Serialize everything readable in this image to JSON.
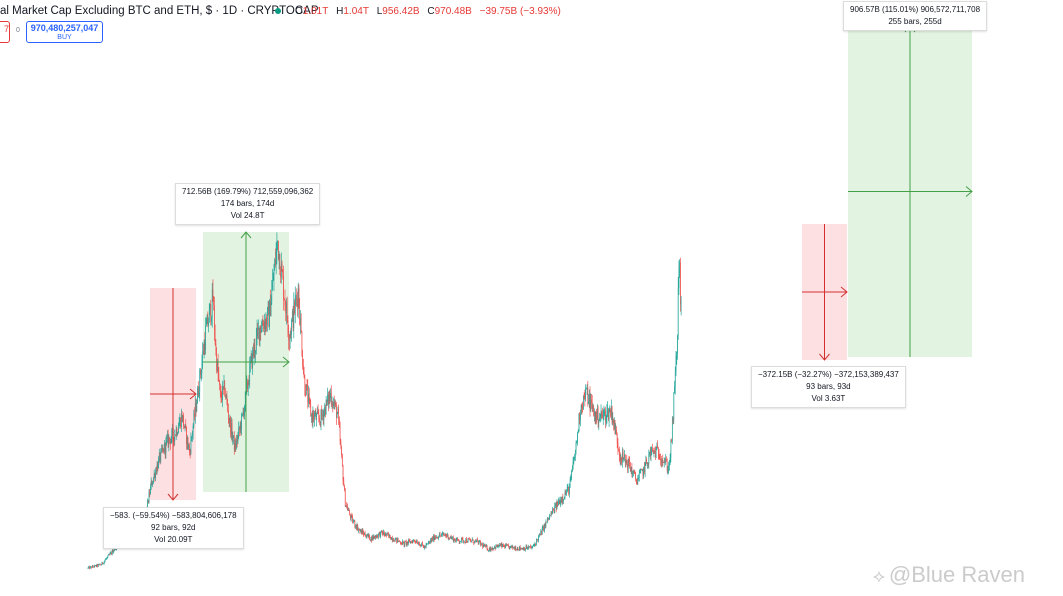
{
  "header": {
    "title": "al Market Cap Excluding BTC and ETH, $ · 1D · CRYPTOCAP",
    "ohlc": [
      {
        "k": "O",
        "v": "1.01T"
      },
      {
        "k": "H",
        "v": "1.04T"
      },
      {
        "k": "L",
        "v": "956.42B"
      },
      {
        "k": "C",
        "v": "970.48B"
      },
      {
        "k": "",
        "v": "−39.75B (−3.93%)"
      }
    ],
    "sell_price_fragment": "7",
    "spread": "0",
    "buy_price": "970,480,257,047",
    "buy_label": "BUY"
  },
  "watermark": "@Blue Raven",
  "colors": {
    "up": "#26a69a",
    "down": "#ef5350",
    "profit_zone": "#e3f3e1",
    "loss_zone": "#fde0e2",
    "profit_line": "#43a047",
    "loss_line": "#d32f2f"
  },
  "chart_data": {
    "type": "candlestick",
    "symbol": "CRYPTOCAP",
    "interval": "1D",
    "price_path_series": [
      {
        "name": "",
        "values": [
          [
            0,
            155
          ],
          [
            18,
            175
          ],
          [
            32,
            240
          ],
          [
            42,
            300
          ],
          [
            55,
            390
          ],
          [
            64,
            470
          ],
          [
            75,
            380
          ],
          [
            86,
            620
          ],
          [
            97,
            760
          ],
          [
            108,
            860
          ],
          [
            118,
            900
          ],
          [
            128,
            1000
          ],
          [
            138,
            800
          ],
          [
            150,
            1150
          ],
          [
            160,
            1460
          ],
          [
            170,
            1650
          ],
          [
            174,
            1350
          ],
          [
            180,
            1100
          ],
          [
            186,
            1150
          ],
          [
            192,
            980
          ],
          [
            200,
            820
          ],
          [
            210,
            990
          ],
          [
            222,
            1300
          ],
          [
            234,
            1500
          ],
          [
            246,
            1550
          ],
          [
            258,
            1970
          ],
          [
            266,
            1710
          ],
          [
            274,
            1450
          ],
          [
            286,
            1700
          ],
          [
            294,
            1200
          ],
          [
            304,
            1000
          ],
          [
            316,
            980
          ],
          [
            330,
            1120
          ],
          [
            340,
            1000
          ],
          [
            350,
            520
          ],
          [
            358,
            430
          ],
          [
            370,
            360
          ],
          [
            385,
            320
          ],
          [
            400,
            350
          ],
          [
            415,
            320
          ],
          [
            430,
            290
          ],
          [
            445,
            310
          ],
          [
            458,
            270
          ],
          [
            472,
            330
          ],
          [
            486,
            340
          ],
          [
            500,
            310
          ],
          [
            515,
            310
          ],
          [
            530,
            300
          ],
          [
            545,
            260
          ],
          [
            560,
            280
          ],
          [
            575,
            270
          ],
          [
            590,
            265
          ],
          [
            605,
            270
          ],
          [
            615,
            340
          ],
          [
            625,
            420
          ],
          [
            640,
            520
          ],
          [
            655,
            600
          ],
          [
            664,
            830
          ],
          [
            670,
            1050
          ],
          [
            678,
            1130
          ],
          [
            690,
            1000
          ],
          [
            700,
            1000
          ],
          [
            712,
            1030
          ],
          [
            724,
            780
          ],
          [
            736,
            730
          ],
          [
            746,
            640
          ],
          [
            756,
            700
          ],
          [
            766,
            800
          ],
          [
            776,
            800
          ],
          [
            790,
            710
          ],
          [
            794,
            870
          ],
          [
            798,
            1150
          ],
          [
            802,
            1450
          ],
          [
            804,
            1870
          ],
          [
            808,
            1500
          ]
        ]
      }
    ],
    "measurements": [
      {
        "text_value": "−583.",
        "text_rest": " (−59.54%) −583,804,606,178",
        "bars": "92 bars, 92d",
        "vol": "Vol 20.09T",
        "direction": "down"
      },
      {
        "text": "712.56B (169.79%) 712,559,096,362",
        "bars": "174 bars, 174d",
        "vol": "Vol 24.8T",
        "direction": "up"
      },
      {
        "text_value": "−372.15B",
        "text_rest": " (−32.27%) −372,153,389,437",
        "bars": "93 bars, 93d",
        "vol": "Vol 3.63T",
        "direction": "down"
      },
      {
        "text": "906.57B (115.01%) 906,572,711,708",
        "bars": "255 bars, 255d",
        "direction": "up"
      }
    ],
    "grid": false,
    "legend": "none"
  }
}
